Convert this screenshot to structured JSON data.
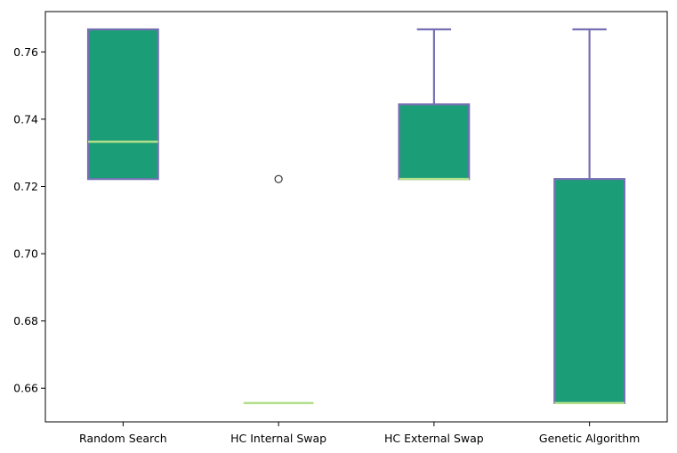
{
  "chart_data": {
    "type": "box",
    "title": "",
    "xlabel": "",
    "ylabel": "",
    "ylim": [
      0.65,
      0.772
    ],
    "y_ticks": [
      "0.66",
      "0.68",
      "0.70",
      "0.72",
      "0.74",
      "0.76"
    ],
    "grid": false,
    "legend": "none",
    "categories": [
      "Random Search",
      "HC Internal Swap",
      "HC External Swap",
      "Genetic Algorithm"
    ],
    "boxes": [
      {
        "q1": 0.7222,
        "median": 0.7333,
        "q3": 0.7667,
        "whisker_low": 0.7222,
        "whisker_high": 0.7667,
        "outliers": []
      },
      {
        "q1": 0.6556,
        "median": 0.6556,
        "q3": 0.6556,
        "whisker_low": 0.6556,
        "whisker_high": 0.6556,
        "outliers": [
          0.7222
        ]
      },
      {
        "q1": 0.7222,
        "median": 0.7222,
        "q3": 0.7444,
        "whisker_low": 0.7222,
        "whisker_high": 0.7667,
        "outliers": []
      },
      {
        "q1": 0.6556,
        "median": 0.6556,
        "q3": 0.7222,
        "whisker_low": 0.6556,
        "whisker_high": 0.7667,
        "outliers": []
      }
    ],
    "colors": {
      "box_fill": "#1b9e77",
      "box_edge": "#7570b3",
      "median": "#b2df8a",
      "outlier_edge": "#333333"
    }
  }
}
